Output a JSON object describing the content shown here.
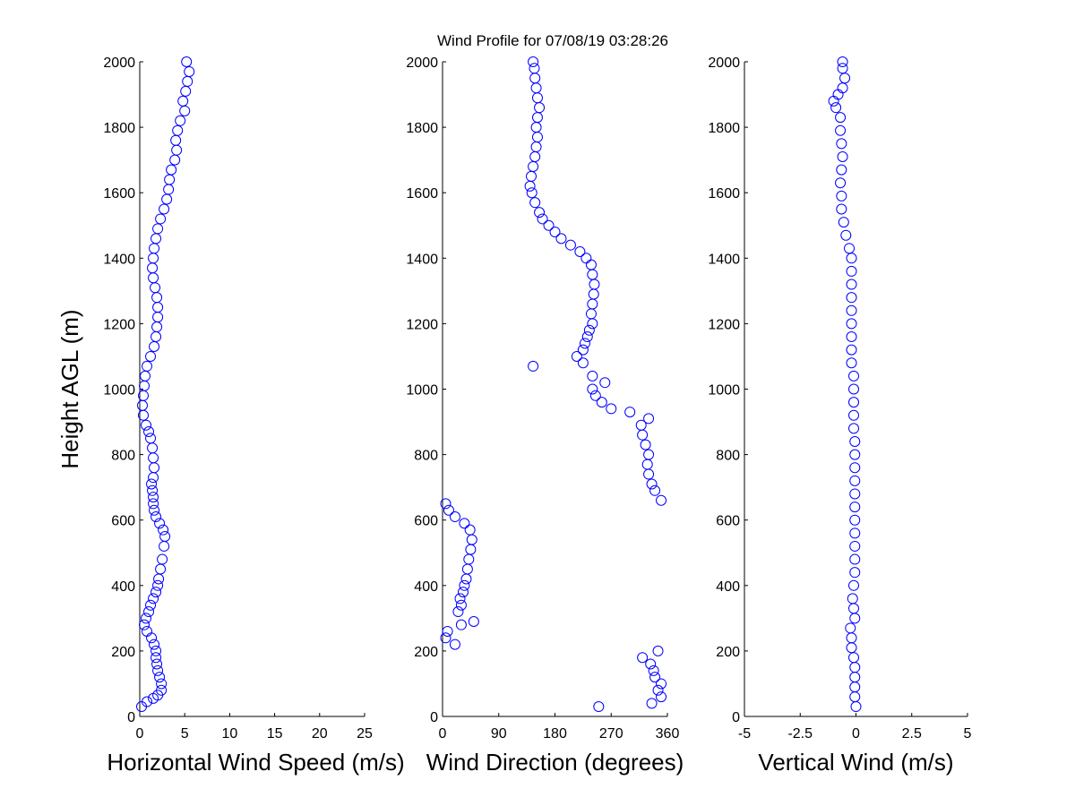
{
  "title": "Wind Profile for  07/08/19 03:28:26",
  "colors": {
    "marker": "#0000ff",
    "axis": "#000000",
    "background": "#ffffff"
  },
  "chart_data": [
    {
      "type": "scatter",
      "xlabel": "Horizontal Wind Speed (m/s)",
      "ylabel": "Height AGL (m)",
      "xlim": [
        0,
        25
      ],
      "ylim": [
        0,
        2000
      ],
      "xticks": [
        "0",
        "5",
        "10",
        "15",
        "20",
        "25"
      ],
      "yticks": [
        "0",
        "200",
        "400",
        "600",
        "800",
        "1000",
        "1200",
        "1400",
        "1600",
        "1800",
        "2000"
      ],
      "grid": false,
      "marker": "open-circle",
      "points": [
        [
          0.2,
          30
        ],
        [
          0.8,
          45
        ],
        [
          1.5,
          55
        ],
        [
          2.0,
          65
        ],
        [
          2.4,
          80
        ],
        [
          2.4,
          100
        ],
        [
          2.2,
          120
        ],
        [
          2.0,
          140
        ],
        [
          1.9,
          160
        ],
        [
          1.8,
          180
        ],
        [
          1.8,
          200
        ],
        [
          1.6,
          220
        ],
        [
          1.3,
          240
        ],
        [
          0.8,
          260
        ],
        [
          0.5,
          280
        ],
        [
          0.7,
          300
        ],
        [
          1.0,
          320
        ],
        [
          1.2,
          340
        ],
        [
          1.5,
          360
        ],
        [
          1.8,
          380
        ],
        [
          2.0,
          400
        ],
        [
          2.1,
          420
        ],
        [
          2.3,
          450
        ],
        [
          2.5,
          480
        ],
        [
          2.7,
          520
        ],
        [
          2.8,
          550
        ],
        [
          2.6,
          570
        ],
        [
          2.2,
          590
        ],
        [
          1.8,
          610
        ],
        [
          1.6,
          630
        ],
        [
          1.5,
          650
        ],
        [
          1.5,
          670
        ],
        [
          1.4,
          690
        ],
        [
          1.3,
          710
        ],
        [
          1.5,
          730
        ],
        [
          1.6,
          760
        ],
        [
          1.5,
          790
        ],
        [
          1.4,
          820
        ],
        [
          1.2,
          850
        ],
        [
          1.0,
          870
        ],
        [
          0.7,
          890
        ],
        [
          0.4,
          920
        ],
        [
          0.3,
          950
        ],
        [
          0.4,
          980
        ],
        [
          0.5,
          1010
        ],
        [
          0.6,
          1040
        ],
        [
          0.8,
          1070
        ],
        [
          1.2,
          1100
        ],
        [
          1.6,
          1130
        ],
        [
          1.8,
          1160
        ],
        [
          1.9,
          1190
        ],
        [
          2.0,
          1220
        ],
        [
          2.0,
          1250
        ],
        [
          1.9,
          1280
        ],
        [
          1.7,
          1310
        ],
        [
          1.5,
          1340
        ],
        [
          1.4,
          1370
        ],
        [
          1.5,
          1400
        ],
        [
          1.6,
          1430
        ],
        [
          1.8,
          1460
        ],
        [
          2.0,
          1490
        ],
        [
          2.3,
          1520
        ],
        [
          2.7,
          1550
        ],
        [
          3.0,
          1580
        ],
        [
          3.2,
          1610
        ],
        [
          3.3,
          1640
        ],
        [
          3.5,
          1670
        ],
        [
          3.9,
          1700
        ],
        [
          4.1,
          1730
        ],
        [
          4.0,
          1760
        ],
        [
          4.2,
          1790
        ],
        [
          4.5,
          1820
        ],
        [
          5.0,
          1850
        ],
        [
          4.8,
          1880
        ],
        [
          5.1,
          1910
        ],
        [
          5.3,
          1940
        ],
        [
          5.5,
          1970
        ],
        [
          5.2,
          2000
        ]
      ]
    },
    {
      "type": "scatter",
      "xlabel": "Wind Direction (degrees)",
      "ylabel": "",
      "xlim": [
        0,
        360
      ],
      "ylim": [
        0,
        2000
      ],
      "xticks": [
        "0",
        "90",
        "180",
        "270",
        "360"
      ],
      "yticks": [
        "0",
        "200",
        "400",
        "600",
        "800",
        "1000",
        "1200",
        "1400",
        "1600",
        "1800",
        "2000"
      ],
      "grid": false,
      "marker": "open-circle",
      "points": [
        [
          250,
          30
        ],
        [
          335,
          40
        ],
        [
          350,
          60
        ],
        [
          345,
          80
        ],
        [
          350,
          100
        ],
        [
          340,
          120
        ],
        [
          338,
          140
        ],
        [
          333,
          160
        ],
        [
          320,
          180
        ],
        [
          345,
          200
        ],
        [
          20,
          220
        ],
        [
          5,
          240
        ],
        [
          8,
          260
        ],
        [
          30,
          280
        ],
        [
          50,
          290
        ],
        [
          25,
          320
        ],
        [
          30,
          340
        ],
        [
          28,
          360
        ],
        [
          33,
          380
        ],
        [
          35,
          400
        ],
        [
          38,
          420
        ],
        [
          40,
          450
        ],
        [
          42,
          480
        ],
        [
          45,
          510
        ],
        [
          47,
          540
        ],
        [
          44,
          570
        ],
        [
          35,
          590
        ],
        [
          20,
          610
        ],
        [
          10,
          630
        ],
        [
          5,
          650
        ],
        [
          350,
          660
        ],
        [
          340,
          690
        ],
        [
          335,
          710
        ],
        [
          330,
          740
        ],
        [
          328,
          770
        ],
        [
          330,
          800
        ],
        [
          325,
          830
        ],
        [
          320,
          860
        ],
        [
          318,
          890
        ],
        [
          330,
          910
        ],
        [
          300,
          930
        ],
        [
          270,
          940
        ],
        [
          255,
          960
        ],
        [
          245,
          980
        ],
        [
          240,
          1000
        ],
        [
          260,
          1020
        ],
        [
          240,
          1040
        ],
        [
          145,
          1070
        ],
        [
          225,
          1080
        ],
        [
          215,
          1100
        ],
        [
          225,
          1120
        ],
        [
          228,
          1140
        ],
        [
          232,
          1160
        ],
        [
          235,
          1180
        ],
        [
          240,
          1200
        ],
        [
          238,
          1230
        ],
        [
          240,
          1260
        ],
        [
          242,
          1290
        ],
        [
          243,
          1320
        ],
        [
          240,
          1350
        ],
        [
          238,
          1380
        ],
        [
          230,
          1400
        ],
        [
          220,
          1420
        ],
        [
          205,
          1440
        ],
        [
          190,
          1460
        ],
        [
          180,
          1480
        ],
        [
          170,
          1500
        ],
        [
          160,
          1520
        ],
        [
          155,
          1540
        ],
        [
          148,
          1570
        ],
        [
          143,
          1600
        ],
        [
          140,
          1620
        ],
        [
          142,
          1650
        ],
        [
          145,
          1680
        ],
        [
          148,
          1710
        ],
        [
          150,
          1740
        ],
        [
          152,
          1770
        ],
        [
          150,
          1800
        ],
        [
          152,
          1830
        ],
        [
          155,
          1860
        ],
        [
          152,
          1890
        ],
        [
          150,
          1920
        ],
        [
          148,
          1950
        ],
        [
          147,
          1980
        ],
        [
          145,
          2000
        ]
      ]
    },
    {
      "type": "scatter",
      "xlabel": "Vertical Wind (m/s)",
      "ylabel": "",
      "xlim": [
        -5,
        5
      ],
      "ylim": [
        0,
        2000
      ],
      "xticks": [
        "-5",
        "-2.5",
        "0",
        "2.5",
        "5"
      ],
      "yticks": [
        "0",
        "200",
        "400",
        "600",
        "800",
        "1000",
        "1200",
        "1400",
        "1600",
        "1800",
        "2000"
      ],
      "grid": false,
      "marker": "open-circle",
      "points": [
        [
          0.0,
          30
        ],
        [
          -0.05,
          60
        ],
        [
          -0.05,
          90
        ],
        [
          -0.05,
          120
        ],
        [
          -0.05,
          150
        ],
        [
          -0.1,
          180
        ],
        [
          -0.2,
          210
        ],
        [
          -0.2,
          240
        ],
        [
          -0.25,
          270
        ],
        [
          -0.05,
          300
        ],
        [
          -0.1,
          330
        ],
        [
          -0.15,
          360
        ],
        [
          -0.1,
          400
        ],
        [
          -0.05,
          440
        ],
        [
          -0.05,
          480
        ],
        [
          -0.05,
          520
        ],
        [
          -0.05,
          560
        ],
        [
          -0.05,
          600
        ],
        [
          -0.05,
          640
        ],
        [
          -0.05,
          680
        ],
        [
          -0.05,
          720
        ],
        [
          -0.05,
          760
        ],
        [
          -0.05,
          800
        ],
        [
          -0.05,
          840
        ],
        [
          -0.1,
          880
        ],
        [
          -0.1,
          920
        ],
        [
          -0.1,
          960
        ],
        [
          -0.1,
          1000
        ],
        [
          -0.1,
          1040
        ],
        [
          -0.2,
          1080
        ],
        [
          -0.2,
          1120
        ],
        [
          -0.2,
          1160
        ],
        [
          -0.2,
          1200
        ],
        [
          -0.2,
          1240
        ],
        [
          -0.2,
          1280
        ],
        [
          -0.2,
          1320
        ],
        [
          -0.2,
          1360
        ],
        [
          -0.2,
          1400
        ],
        [
          -0.3,
          1430
        ],
        [
          -0.45,
          1470
        ],
        [
          -0.55,
          1510
        ],
        [
          -0.65,
          1550
        ],
        [
          -0.65,
          1590
        ],
        [
          -0.7,
          1630
        ],
        [
          -0.65,
          1670
        ],
        [
          -0.6,
          1710
        ],
        [
          -0.65,
          1750
        ],
        [
          -0.7,
          1790
        ],
        [
          -0.7,
          1830
        ],
        [
          -0.9,
          1860
        ],
        [
          -1.0,
          1880
        ],
        [
          -0.8,
          1900
        ],
        [
          -0.6,
          1920
        ],
        [
          -0.5,
          1950
        ],
        [
          -0.6,
          1980
        ],
        [
          -0.6,
          2000
        ]
      ]
    }
  ]
}
